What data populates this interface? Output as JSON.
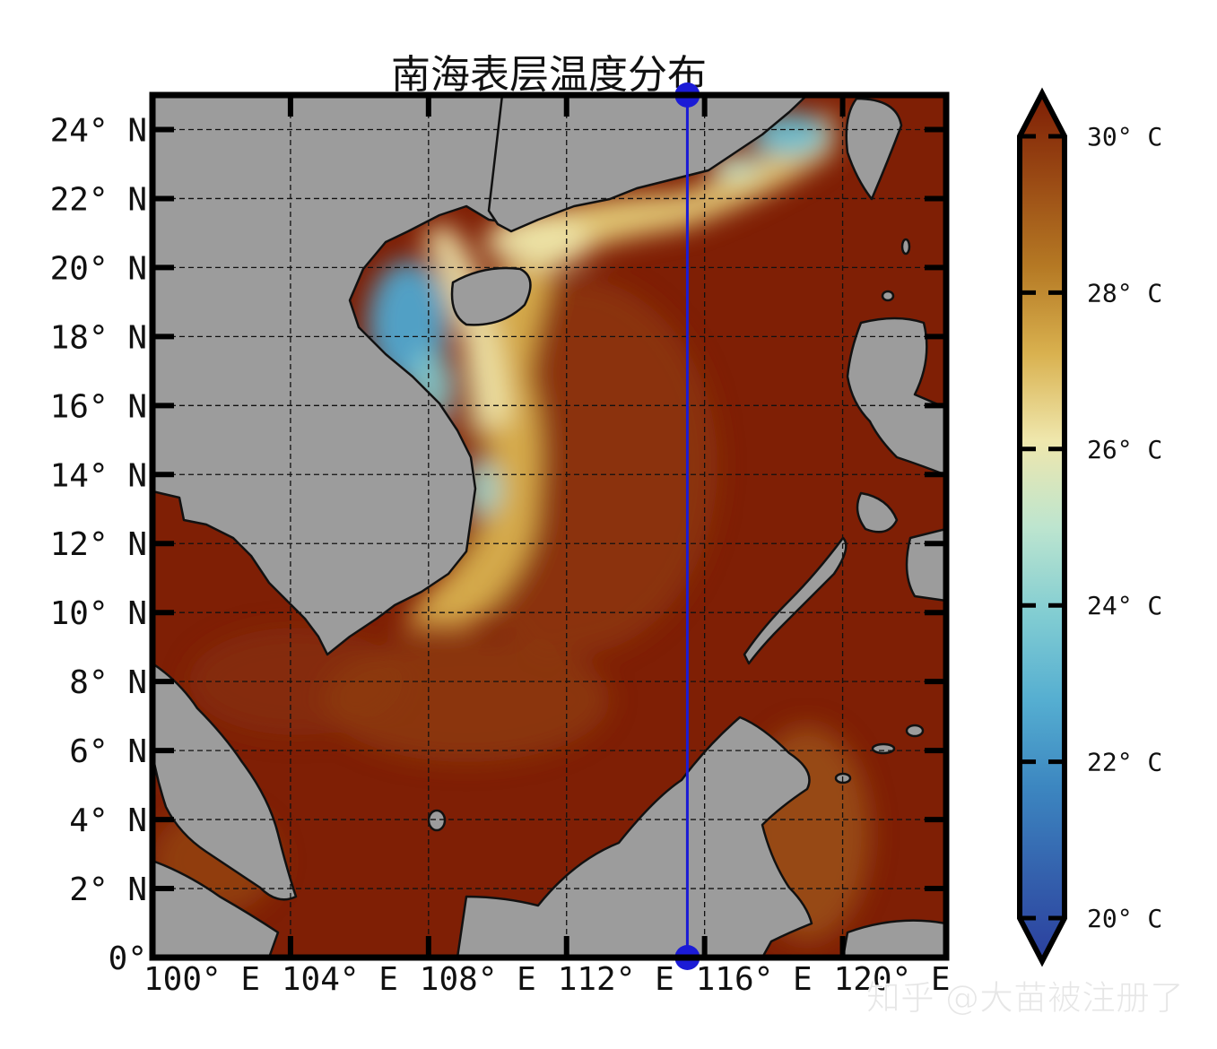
{
  "title": "南海表层温度分布",
  "colors": {
    "land": "#9c9c9c",
    "warm_sea": "#7f1f05",
    "transect_line": "#1b1bd6",
    "coast": "#111111"
  },
  "map": {
    "lon_range": [
      100,
      123
    ],
    "lat_range": [
      0,
      25
    ],
    "grid": "dashed",
    "lon_ticks": [
      {
        "value": 100,
        "label": "100° E"
      },
      {
        "value": 104,
        "label": "104° E"
      },
      {
        "value": 108,
        "label": "108° E"
      },
      {
        "value": 112,
        "label": "112° E"
      },
      {
        "value": 116,
        "label": "116° E"
      },
      {
        "value": 120,
        "label": "120° E"
      }
    ],
    "lat_ticks": [
      {
        "value": 0,
        "label": "0°"
      },
      {
        "value": 2,
        "label": "2° N"
      },
      {
        "value": 4,
        "label": "4° N"
      },
      {
        "value": 6,
        "label": "6° N"
      },
      {
        "value": 8,
        "label": "8° N"
      },
      {
        "value": 10,
        "label": "10° N"
      },
      {
        "value": 12,
        "label": "12° N"
      },
      {
        "value": 14,
        "label": "14° N"
      },
      {
        "value": 16,
        "label": "16° N"
      },
      {
        "value": 18,
        "label": "18° N"
      },
      {
        "value": 20,
        "label": "20° N"
      },
      {
        "value": 22,
        "label": "22° N"
      },
      {
        "value": 24,
        "label": "24° N"
      }
    ],
    "transect": {
      "lon": 115.5,
      "lat_start": 0,
      "lat_end": 25
    }
  },
  "colorbar": {
    "vmin": 20,
    "vmax": 30,
    "extend": "both",
    "ticks": [
      {
        "value": 20,
        "label": "20° C"
      },
      {
        "value": 22,
        "label": "22° C"
      },
      {
        "value": 24,
        "label": "24° C"
      },
      {
        "value": 26,
        "label": "26° C"
      },
      {
        "value": 28,
        "label": "28° C"
      },
      {
        "value": 30,
        "label": "30° C"
      }
    ],
    "stops": [
      {
        "value": 20,
        "color": "#2b3f9e"
      },
      {
        "value": 21,
        "color": "#3461ad"
      },
      {
        "value": 22,
        "color": "#3c86c0"
      },
      {
        "value": 23,
        "color": "#55aed1"
      },
      {
        "value": 24,
        "color": "#82cdd2"
      },
      {
        "value": 25,
        "color": "#bde5cf"
      },
      {
        "value": 26,
        "color": "#efe7ad"
      },
      {
        "value": 27,
        "color": "#d9b14f"
      },
      {
        "value": 28,
        "color": "#b57924"
      },
      {
        "value": 29,
        "color": "#9a4a14"
      },
      {
        "value": 30,
        "color": "#7e1e05"
      }
    ]
  },
  "watermark": "知乎 @大苗被注册了"
}
